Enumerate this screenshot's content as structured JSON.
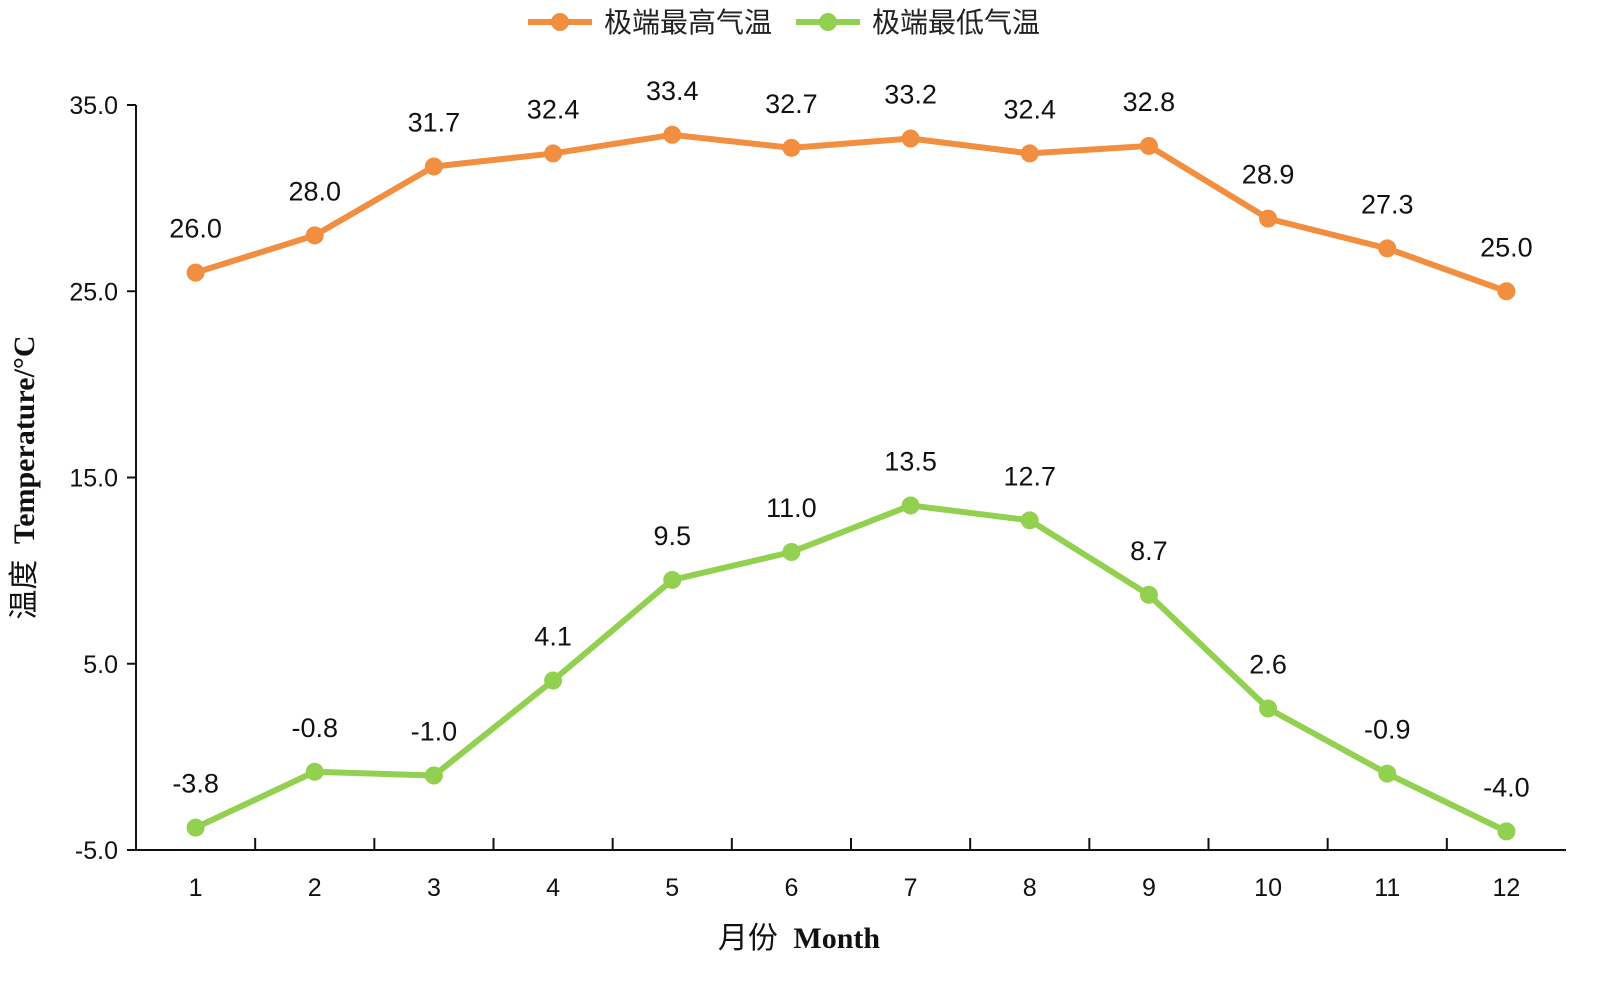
{
  "chart_data": {
    "type": "line",
    "categories": [
      "1",
      "2",
      "3",
      "4",
      "5",
      "6",
      "7",
      "8",
      "9",
      "10",
      "11",
      "12"
    ],
    "series": [
      {
        "name": "极端最高气温",
        "color": "#f28e3f",
        "values": [
          26.0,
          28.0,
          31.7,
          32.4,
          33.4,
          32.7,
          33.2,
          32.4,
          32.8,
          28.9,
          27.3,
          25.0
        ],
        "labels": [
          "26.0",
          "28.0",
          "31.7",
          "32.4",
          "33.4",
          "32.7",
          "33.2",
          "32.4",
          "32.8",
          "28.9",
          "27.3",
          "25.0"
        ]
      },
      {
        "name": "极端最低气温",
        "color": "#92d050",
        "values": [
          -3.8,
          -0.8,
          -1.0,
          4.1,
          9.5,
          11.0,
          13.5,
          12.7,
          8.7,
          2.6,
          -0.9,
          -4.0
        ],
        "labels": [
          "-3.8",
          "-0.8",
          "-1.0",
          "4.1",
          "9.5",
          "11.0",
          "13.5",
          "12.7",
          "8.7",
          "2.6",
          "-0.9",
          "-4.0"
        ]
      }
    ],
    "xlabel_cn": "月份",
    "xlabel_en": "Month",
    "ylabel_cn": "温度",
    "ylabel_en": "Temperature/°C",
    "ylim": [
      -5.0,
      35.0
    ],
    "yticks": [
      "-5.0",
      "5.0",
      "15.0",
      "25.0",
      "35.0"
    ],
    "ytick_values": [
      -5,
      5,
      15,
      25,
      35
    ],
    "grid": false,
    "legend_position": "top-center"
  }
}
